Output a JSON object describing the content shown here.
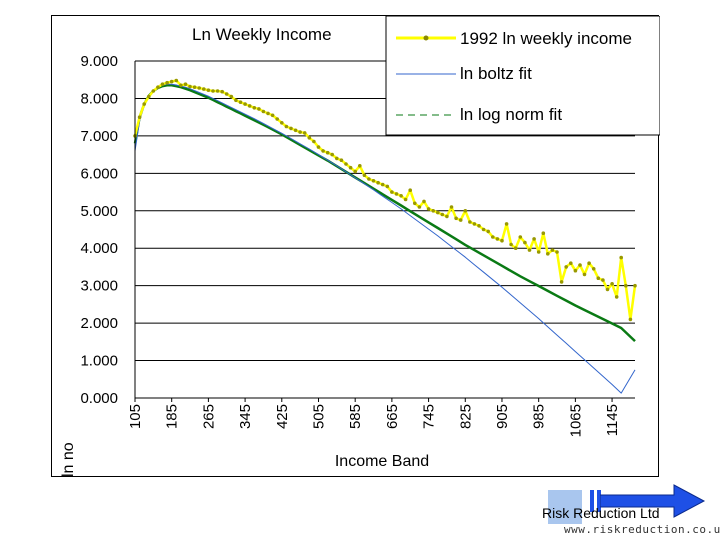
{
  "chart_data": {
    "type": "line",
    "title": "Ln Weekly Income",
    "xlabel": "Income Band",
    "ylabel": "ln no",
    "ylim": [
      0,
      9
    ],
    "xlim": [
      105,
      1195
    ],
    "y_ticks": [
      "0.000",
      "1.000",
      "2.000",
      "3.000",
      "4.000",
      "5.000",
      "6.000",
      "7.000",
      "8.000",
      "9.000"
    ],
    "x_ticks": [
      "105",
      "185",
      "265",
      "345",
      "425",
      "505",
      "585",
      "665",
      "745",
      "825",
      "905",
      "985",
      "1065",
      "1145"
    ],
    "grid": true,
    "legend_position": "top-right",
    "series": [
      {
        "name": "1992 ln weekly income",
        "color": "#ffff00",
        "marker": "dot",
        "x": [
          105,
          115,
          125,
          135,
          145,
          155,
          165,
          175,
          185,
          195,
          205,
          215,
          225,
          235,
          245,
          255,
          265,
          275,
          285,
          295,
          305,
          315,
          325,
          335,
          345,
          355,
          365,
          375,
          385,
          395,
          405,
          415,
          425,
          435,
          445,
          455,
          465,
          475,
          485,
          495,
          505,
          515,
          525,
          535,
          545,
          555,
          565,
          575,
          585,
          595,
          605,
          615,
          625,
          635,
          645,
          655,
          665,
          675,
          685,
          695,
          705,
          715,
          725,
          735,
          745,
          755,
          765,
          775,
          785,
          795,
          805,
          815,
          825,
          835,
          845,
          855,
          865,
          875,
          885,
          895,
          905,
          915,
          925,
          935,
          945,
          955,
          965,
          975,
          985,
          995,
          1005,
          1015,
          1025,
          1035,
          1045,
          1055,
          1065,
          1075,
          1085,
          1095,
          1105,
          1115,
          1125,
          1135,
          1145,
          1155,
          1165,
          1175,
          1185,
          1195
        ],
        "y": [
          7.0,
          7.5,
          7.85,
          8.05,
          8.2,
          8.3,
          8.38,
          8.42,
          8.45,
          8.48,
          8.35,
          8.38,
          8.32,
          8.3,
          8.28,
          8.25,
          8.22,
          8.2,
          8.2,
          8.18,
          8.12,
          8.05,
          7.95,
          7.9,
          7.85,
          7.8,
          7.75,
          7.72,
          7.65,
          7.6,
          7.55,
          7.45,
          7.35,
          7.25,
          7.2,
          7.15,
          7.1,
          7.08,
          6.95,
          6.85,
          6.7,
          6.6,
          6.55,
          6.5,
          6.4,
          6.35,
          6.25,
          6.15,
          6.05,
          6.2,
          5.95,
          5.85,
          5.8,
          5.75,
          5.7,
          5.65,
          5.5,
          5.45,
          5.4,
          5.3,
          5.55,
          5.2,
          5.1,
          5.25,
          5.05,
          5.0,
          4.95,
          4.9,
          4.85,
          5.1,
          4.8,
          4.75,
          5.0,
          4.7,
          4.65,
          4.6,
          4.5,
          4.45,
          4.3,
          4.25,
          4.2,
          4.65,
          4.1,
          4.0,
          4.3,
          4.15,
          3.95,
          4.25,
          3.9,
          4.4,
          3.85,
          3.95,
          3.9,
          3.1,
          3.5,
          3.6,
          3.4,
          3.55,
          3.3,
          3.6,
          3.45,
          3.2,
          3.15,
          2.9,
          3.05,
          2.7,
          3.75,
          3.0,
          2.1,
          3.0
        ]
      },
      {
        "name": "ln boltz fit",
        "color": "#3366cc",
        "style": "solid",
        "x": [
          105,
          115,
          125,
          135,
          145,
          155,
          165,
          175,
          185,
          195,
          205,
          215,
          225,
          235,
          245,
          255,
          265,
          275,
          285,
          295,
          305,
          315,
          325,
          335,
          345,
          365,
          385,
          405,
          425,
          445,
          465,
          485,
          505,
          525,
          545,
          565,
          585,
          605,
          625,
          645,
          665,
          685,
          705,
          725,
          745,
          765,
          785,
          805,
          825,
          845,
          865,
          885,
          905,
          925,
          945,
          965,
          985,
          1005,
          1025,
          1045,
          1065,
          1085,
          1105,
          1125,
          1145,
          1165,
          1195
        ],
        "y": [
          6.6,
          7.4,
          7.8,
          8.05,
          8.2,
          8.3,
          8.35,
          8.38,
          8.38,
          8.36,
          8.33,
          8.3,
          8.26,
          8.21,
          8.16,
          8.11,
          8.06,
          8.0,
          7.94,
          7.88,
          7.82,
          7.76,
          7.7,
          7.64,
          7.58,
          7.46,
          7.33,
          7.2,
          7.07,
          6.93,
          6.79,
          6.65,
          6.5,
          6.35,
          6.2,
          6.04,
          5.88,
          5.72,
          5.56,
          5.39,
          5.22,
          5.05,
          4.87,
          4.69,
          4.51,
          4.33,
          4.14,
          3.95,
          3.76,
          3.56,
          3.36,
          3.16,
          2.96,
          2.75,
          2.54,
          2.33,
          2.12,
          1.9,
          1.68,
          1.46,
          1.24,
          1.02,
          0.8,
          0.58,
          0.36,
          0.13,
          0.75
        ]
      },
      {
        "name": "ln log norm fit",
        "color": "#0a7a14",
        "style": "dashed",
        "x": [
          105,
          115,
          125,
          135,
          145,
          155,
          165,
          175,
          185,
          195,
          205,
          215,
          225,
          235,
          245,
          255,
          265,
          275,
          285,
          295,
          305,
          315,
          325,
          335,
          345,
          365,
          385,
          405,
          425,
          445,
          465,
          485,
          505,
          525,
          545,
          565,
          585,
          605,
          625,
          645,
          665,
          685,
          705,
          725,
          745,
          765,
          785,
          805,
          825,
          845,
          865,
          885,
          905,
          925,
          945,
          965,
          985,
          1005,
          1025,
          1045,
          1065,
          1085,
          1105,
          1125,
          1145,
          1165,
          1195
        ],
        "y": [
          6.8,
          7.5,
          7.85,
          8.07,
          8.2,
          8.28,
          8.33,
          8.35,
          8.35,
          8.33,
          8.3,
          8.26,
          8.22,
          8.17,
          8.12,
          8.07,
          8.02,
          7.96,
          7.9,
          7.84,
          7.78,
          7.72,
          7.66,
          7.6,
          7.54,
          7.42,
          7.3,
          7.17,
          7.04,
          6.9,
          6.76,
          6.62,
          6.48,
          6.34,
          6.19,
          6.04,
          5.89,
          5.74,
          5.59,
          5.44,
          5.29,
          5.14,
          4.99,
          4.84,
          4.69,
          4.54,
          4.39,
          4.24,
          4.09,
          3.95,
          3.81,
          3.67,
          3.53,
          3.39,
          3.25,
          3.12,
          2.99,
          2.86,
          2.73,
          2.6,
          2.47,
          2.35,
          2.23,
          2.11,
          1.99,
          1.87,
          1.52
        ]
      }
    ]
  },
  "brand": {
    "name": "Risk Reduction Ltd",
    "url": "www.riskreduction.co.uk",
    "logo_color": "#a9c6ee",
    "arrow_color": "#1e50e6"
  }
}
